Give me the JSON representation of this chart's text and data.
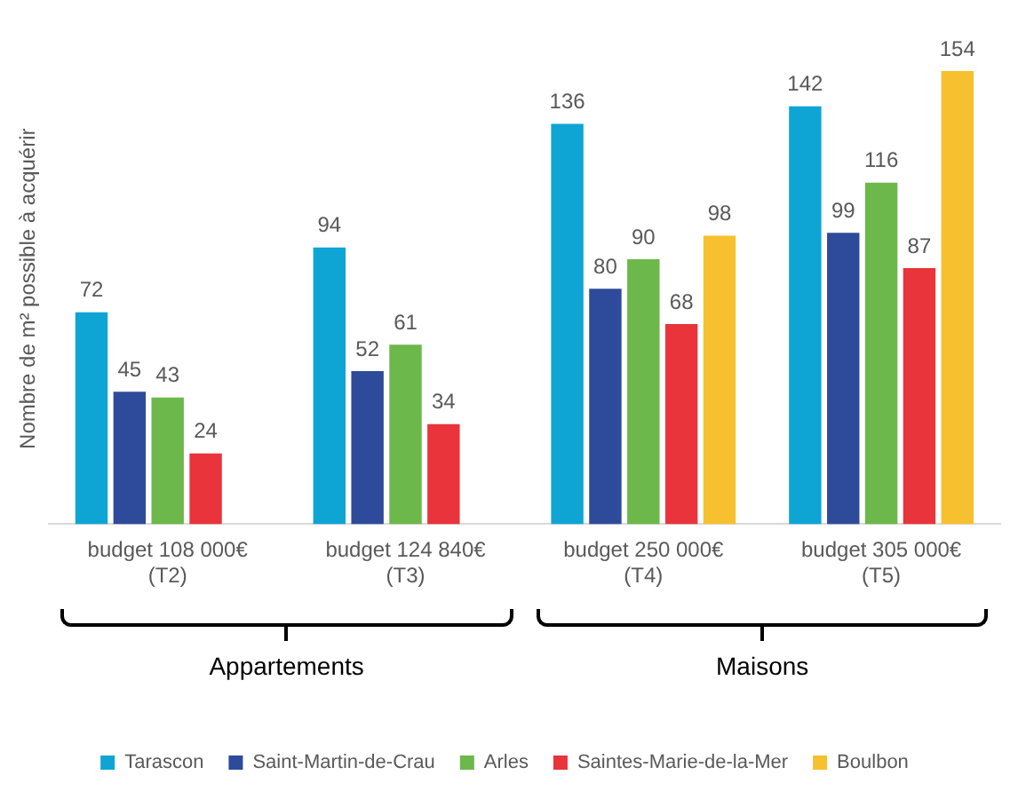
{
  "chart_data": {
    "type": "bar",
    "ylabel": "Nombre de m² possible à acquérir",
    "categories": [
      "budget 108 000€\n(T2)",
      "budget 124 840€\n(T3)",
      "budget 250 000€\n(T4)",
      "budget 305 000€\n(T5)"
    ],
    "series": [
      {
        "name": "Tarascon",
        "color": "#0ea5d5",
        "values": [
          72,
          94,
          136,
          142
        ]
      },
      {
        "name": "Saint-Martin-de-Crau",
        "color": "#2e4a9a",
        "values": [
          45,
          52,
          80,
          99
        ]
      },
      {
        "name": "Arles",
        "color": "#6cb84a",
        "values": [
          43,
          61,
          90,
          116
        ]
      },
      {
        "name": "Saintes-Marie-de-la-Mer",
        "color": "#e8343a",
        "values": [
          24,
          34,
          68,
          87
        ]
      },
      {
        "name": "Boulbon",
        "color": "#f6c02f",
        "values": [
          null,
          null,
          98,
          154
        ]
      }
    ],
    "data_labels": true,
    "grid": false,
    "legend": "bottom",
    "annotations": [
      "Appartements",
      "Maisons"
    ]
  }
}
